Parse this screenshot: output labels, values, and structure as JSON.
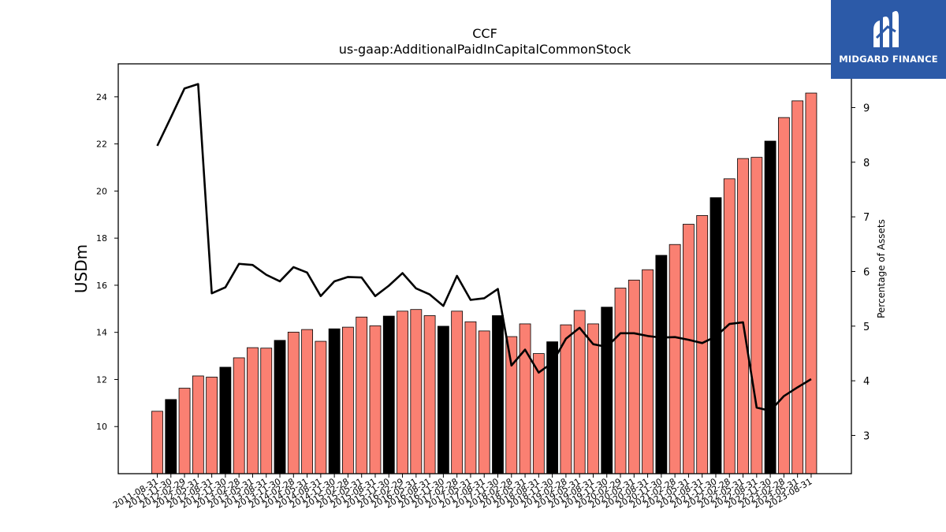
{
  "brand": {
    "name": "MIDGARD FINANCE",
    "logo_icon": "midgard-m-logo-icon",
    "color": "#2c5aa8"
  },
  "chart_data": {
    "type": "bar",
    "title": "CCF",
    "subtitle": "us-gaap:AdditionalPaidInCapitalCommonStock",
    "ylabel": "USDm",
    "y2label": "Percentage of Assets",
    "ylim": [
      8.0,
      25.4
    ],
    "y2lim": [
      2.3,
      9.8
    ],
    "yticks": [
      10,
      12,
      14,
      16,
      18,
      20,
      22,
      24
    ],
    "y2ticks": [
      3,
      4,
      5,
      6,
      7,
      8,
      9
    ],
    "colors": {
      "bar": "#fa8072",
      "bar_highlight": "#000000",
      "line": "#000000"
    },
    "categories": [
      "2011-08-31",
      "2011-11-30",
      "2012-02-29",
      "2012-05-31",
      "2012-08-31",
      "2012-11-30",
      "2013-02-28",
      "2013-05-31",
      "2013-08-31",
      "2013-11-30",
      "2014-02-28",
      "2014-05-31",
      "2014-08-31",
      "2014-11-30",
      "2015-02-28",
      "2015-05-31",
      "2015-08-31",
      "2015-11-30",
      "2016-02-29",
      "2016-05-31",
      "2016-08-31",
      "2016-11-30",
      "2017-02-28",
      "2017-05-31",
      "2017-08-31",
      "2017-11-30",
      "2018-02-28",
      "2018-05-31",
      "2018-08-31",
      "2018-11-30",
      "2019-02-28",
      "2019-05-31",
      "2019-08-31",
      "2019-11-30",
      "2020-02-29",
      "2020-05-31",
      "2020-08-31",
      "2020-11-30",
      "2021-02-28",
      "2021-05-31",
      "2021-08-31",
      "2021-11-30",
      "2022-02-28",
      "2022-05-31",
      "2022-08-31",
      "2022-11-30",
      "2023-02-28",
      "2023-05-31",
      "2023-08-31"
    ],
    "series": [
      {
        "type": "bar",
        "values": [
          10.65,
          11.15,
          11.63,
          12.15,
          12.1,
          12.52,
          12.92,
          13.35,
          13.33,
          13.66,
          14.01,
          14.12,
          13.62,
          14.15,
          14.22,
          14.65,
          14.28,
          14.69,
          14.9,
          14.97,
          14.71,
          14.26,
          14.9,
          14.45,
          14.06,
          14.71,
          13.82,
          14.36,
          13.1,
          13.6,
          14.32,
          14.93,
          14.36,
          15.07,
          15.88,
          16.22,
          16.66,
          17.27,
          17.73,
          18.59,
          18.96,
          19.72,
          20.52,
          21.38,
          21.43,
          22.12,
          23.12,
          23.83,
          24.16
        ],
        "highlight": [
          false,
          true,
          false,
          false,
          false,
          true,
          false,
          false,
          false,
          true,
          false,
          false,
          false,
          true,
          false,
          false,
          false,
          true,
          false,
          false,
          false,
          true,
          false,
          false,
          false,
          true,
          false,
          false,
          false,
          true,
          false,
          false,
          false,
          true,
          false,
          false,
          false,
          true,
          false,
          false,
          false,
          true,
          false,
          false,
          false,
          true,
          false,
          false,
          false
        ]
      },
      {
        "type": "line",
        "axis": "right",
        "values": [
          8.3,
          8.82,
          9.35,
          9.43,
          5.6,
          5.71,
          6.14,
          6.12,
          5.94,
          5.82,
          6.08,
          5.98,
          5.55,
          5.82,
          5.9,
          5.89,
          5.55,
          5.74,
          5.97,
          5.69,
          5.58,
          5.37,
          5.92,
          5.48,
          5.51,
          5.68,
          4.28,
          4.57,
          4.15,
          4.33,
          4.77,
          4.97,
          4.67,
          4.62,
          4.87,
          4.87,
          4.82,
          4.79,
          4.8,
          4.75,
          4.69,
          4.81,
          5.04,
          5.07,
          3.51,
          3.45,
          3.72,
          3.88,
          4.03
        ]
      }
    ]
  }
}
